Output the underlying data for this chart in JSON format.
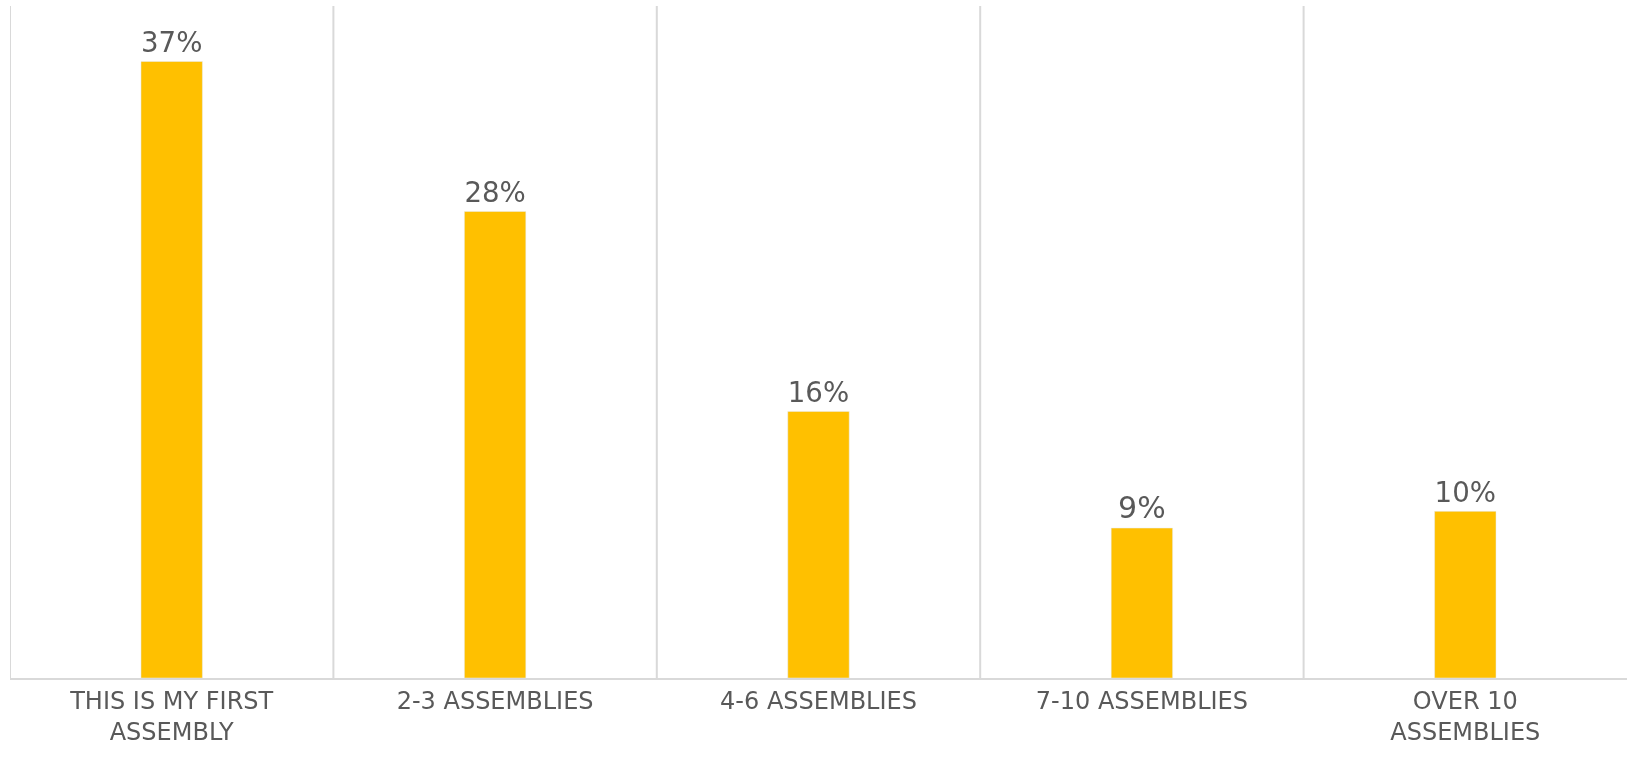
{
  "chart_data": {
    "type": "bar",
    "categories": [
      "THIS IS MY FIRST ASSEMBLY",
      "2-3 ASSEMBLIES",
      "4-6 ASSEMBLIES",
      "7-10 ASSEMBLIES",
      "OVER 10 ASSEMBLIES"
    ],
    "values": [
      37,
      28,
      16,
      9,
      10
    ],
    "color": "#ffc000",
    "data_labels": true,
    "value_labels": [
      "37%",
      "28%",
      "16%",
      "9%",
      "10%"
    ],
    "grid": "x",
    "legend": false
  }
}
